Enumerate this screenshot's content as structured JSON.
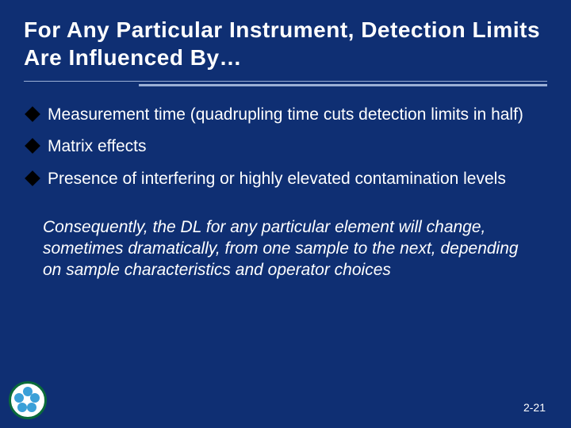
{
  "colors": {
    "background": "#0f2f73",
    "text": "#ffffff",
    "divider": "#9bb0d6",
    "bullet": "#000000",
    "logo_ring": "#0a6b3a",
    "logo_center": "#ffffff",
    "logo_petal": "#3aa0d8"
  },
  "typography": {
    "title_fontsize": 28,
    "body_fontsize": 21,
    "conclusion_fontsize": 21,
    "pagenum_fontsize": 14,
    "title_weight": "bold"
  },
  "layout": {
    "divider_thick_width_ratio": 0.78,
    "bullet_size": 14
  },
  "title": "For Any Particular Instrument, Detection Limits Are Influenced By…",
  "bullets": [
    "Measurement time (quadrupling time cuts detection limits in half)",
    "Matrix effects",
    "Presence of interfering or highly elevated contamination levels"
  ],
  "conclusion": "Consequently, the DL for any particular element will change, sometimes dramatically, from one sample to the next, depending on sample characteristics and operator choices",
  "page_number": "2-21"
}
